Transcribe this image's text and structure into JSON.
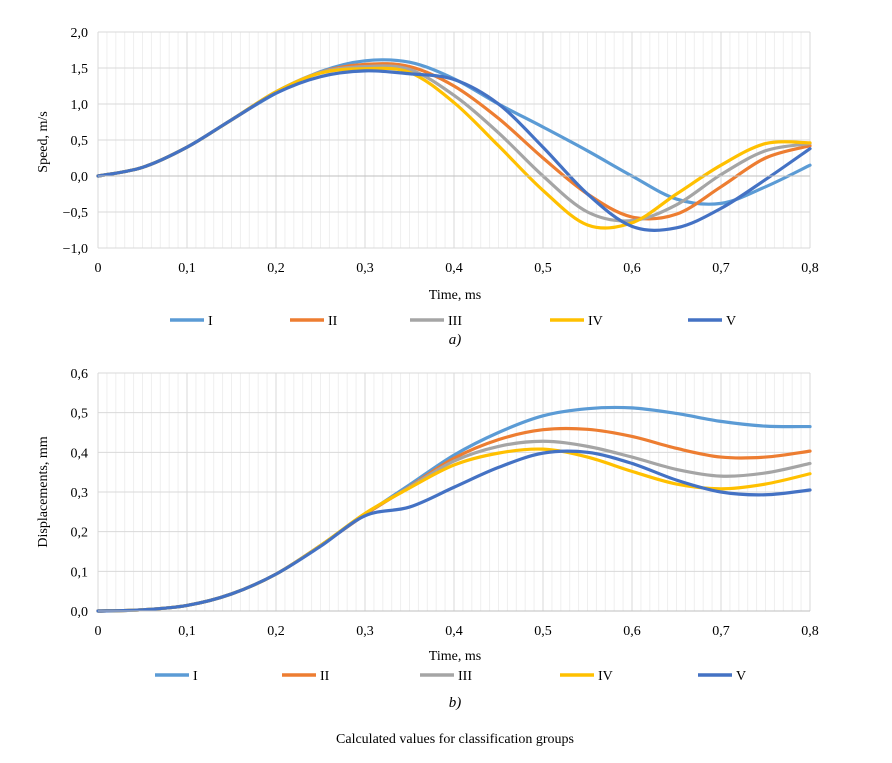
{
  "figure_caption": "Calculated values for classification groups",
  "series_colors": {
    "I": "#5B9BD5",
    "II": "#ED7D31",
    "III": "#A5A5A5",
    "IV": "#FFC000",
    "V": "#4472C4"
  },
  "chart_data": [
    {
      "type": "line",
      "panel_label": "a)",
      "title": "",
      "xlabel": "Time, ms",
      "ylabel": "Speed, m/s",
      "xlim": [
        0,
        0.8
      ],
      "ylim": [
        -1.0,
        2.0
      ],
      "xticks": [
        0,
        0.1,
        0.2,
        0.3,
        0.4,
        0.5,
        0.6,
        0.7,
        0.8
      ],
      "xtick_labels": [
        "0",
        "0,1",
        "0,2",
        "0,3",
        "0,4",
        "0,5",
        "0,6",
        "0,7",
        "0,8"
      ],
      "yticks": [
        -1.0,
        -0.5,
        0.0,
        0.5,
        1.0,
        1.5,
        2.0
      ],
      "ytick_labels": [
        "−1,0",
        "−0,5",
        "0,0",
        "0,5",
        "1,0",
        "1,5",
        "2,0"
      ],
      "grid": true,
      "legend_position": "bottom",
      "x": [
        0,
        0.05,
        0.1,
        0.15,
        0.2,
        0.25,
        0.3,
        0.35,
        0.4,
        0.45,
        0.5,
        0.55,
        0.6,
        0.65,
        0.7,
        0.75,
        0.8
      ],
      "series": [
        {
          "name": "I",
          "values": [
            0,
            0.12,
            0.4,
            0.78,
            1.15,
            1.45,
            1.6,
            1.58,
            1.35,
            1.0,
            0.68,
            0.35,
            0.0,
            -0.32,
            -0.38,
            -0.15,
            0.15
          ]
        },
        {
          "name": "II",
          "values": [
            0,
            0.12,
            0.4,
            0.78,
            1.16,
            1.44,
            1.55,
            1.52,
            1.25,
            0.8,
            0.25,
            -0.25,
            -0.57,
            -0.53,
            -0.15,
            0.25,
            0.42
          ]
        },
        {
          "name": "III",
          "values": [
            0,
            0.12,
            0.4,
            0.78,
            1.17,
            1.44,
            1.52,
            1.48,
            1.12,
            0.6,
            0.0,
            -0.5,
            -0.62,
            -0.4,
            0.02,
            0.35,
            0.45
          ]
        },
        {
          "name": "IV",
          "values": [
            0,
            0.12,
            0.4,
            0.78,
            1.17,
            1.43,
            1.49,
            1.44,
            1.02,
            0.42,
            -0.2,
            -0.68,
            -0.65,
            -0.25,
            0.15,
            0.45,
            0.46
          ]
        },
        {
          "name": "V",
          "values": [
            0,
            0.12,
            0.4,
            0.78,
            1.15,
            1.38,
            1.46,
            1.42,
            1.34,
            1.0,
            0.4,
            -0.25,
            -0.7,
            -0.72,
            -0.45,
            -0.05,
            0.38
          ]
        }
      ]
    },
    {
      "type": "line",
      "panel_label": "b)",
      "title": "",
      "xlabel": "Time, ms",
      "ylabel": "Displacements, mm",
      "xlim": [
        0,
        0.8
      ],
      "ylim": [
        0.0,
        0.6
      ],
      "xticks": [
        0,
        0.1,
        0.2,
        0.3,
        0.4,
        0.5,
        0.6,
        0.7,
        0.8
      ],
      "xtick_labels": [
        "0",
        "0,1",
        "0,2",
        "0,3",
        "0,4",
        "0,5",
        "0,6",
        "0,7",
        "0,8"
      ],
      "yticks": [
        0.0,
        0.1,
        0.2,
        0.3,
        0.4,
        0.5,
        0.6
      ],
      "ytick_labels": [
        "0,0",
        "0,1",
        "0,2",
        "0,3",
        "0,4",
        "0,5",
        "0,6"
      ],
      "grid": true,
      "legend_position": "bottom",
      "x": [
        0,
        0.05,
        0.1,
        0.15,
        0.2,
        0.25,
        0.3,
        0.35,
        0.4,
        0.45,
        0.5,
        0.55,
        0.6,
        0.65,
        0.7,
        0.75,
        0.8
      ],
      "series": [
        {
          "name": "I",
          "values": [
            0,
            0.003,
            0.014,
            0.043,
            0.093,
            0.165,
            0.243,
            0.318,
            0.393,
            0.45,
            0.492,
            0.51,
            0.512,
            0.498,
            0.478,
            0.466,
            0.465
          ]
        },
        {
          "name": "II",
          "values": [
            0,
            0.003,
            0.014,
            0.043,
            0.093,
            0.165,
            0.243,
            0.313,
            0.385,
            0.432,
            0.457,
            0.458,
            0.44,
            0.41,
            0.388,
            0.388,
            0.403
          ]
        },
        {
          "name": "III",
          "values": [
            0,
            0.003,
            0.014,
            0.043,
            0.093,
            0.165,
            0.245,
            0.312,
            0.378,
            0.415,
            0.428,
            0.415,
            0.388,
            0.357,
            0.34,
            0.348,
            0.372
          ]
        },
        {
          "name": "IV",
          "values": [
            0,
            0.003,
            0.014,
            0.043,
            0.093,
            0.165,
            0.246,
            0.31,
            0.368,
            0.398,
            0.408,
            0.388,
            0.352,
            0.32,
            0.308,
            0.32,
            0.346
          ]
        },
        {
          "name": "V",
          "values": [
            0,
            0.003,
            0.014,
            0.043,
            0.093,
            0.163,
            0.24,
            0.262,
            0.312,
            0.362,
            0.398,
            0.4,
            0.372,
            0.33,
            0.3,
            0.293,
            0.305
          ]
        }
      ]
    }
  ]
}
